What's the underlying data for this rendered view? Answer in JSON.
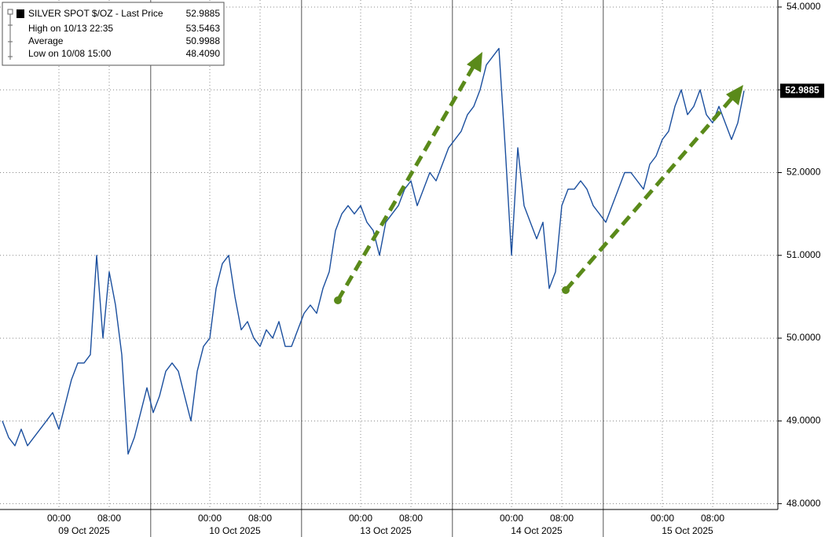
{
  "chart_data": {
    "type": "line",
    "legend": {
      "title": "SILVER SPOT $/OZ - Last Price",
      "last_price": 52.9885,
      "rows": [
        {
          "label": "High on 10/13 22:35",
          "value": 53.5463
        },
        {
          "label": "Average",
          "value": 50.9988
        },
        {
          "label": "Low on 10/08 15:00",
          "value": {
            "value": 48.409,
            "label": "48.4090"
          }
        }
      ]
    },
    "categories": [
      null,
      null,
      null,
      null,
      null,
      null,
      null,
      null,
      null,
      "00:00",
      null,
      null,
      null,
      null,
      null,
      null,
      null,
      "08:00",
      null,
      null,
      null,
      null,
      null,
      null,
      null,
      null,
      null,
      null,
      null,
      null,
      null,
      null,
      null,
      "00:00",
      null,
      null,
      null,
      null,
      null,
      null,
      null,
      "08:00",
      null,
      null,
      null,
      null,
      null,
      null,
      null,
      null,
      null,
      null,
      null,
      null,
      null,
      null,
      null,
      "00:00",
      null,
      null,
      null,
      null,
      null,
      null,
      null,
      "08:00",
      null,
      null,
      null,
      null,
      null,
      null,
      null,
      null,
      null,
      null,
      null,
      null,
      null,
      null,
      null,
      "00:00",
      null,
      null,
      null,
      null,
      null,
      null,
      null,
      "08:00",
      null,
      null,
      null,
      null,
      null,
      null,
      null,
      null,
      null,
      null,
      null,
      null,
      null,
      null,
      null,
      "00:00",
      null,
      null,
      null,
      null,
      null,
      null,
      null,
      "08:00",
      null,
      null,
      null,
      null,
      null
    ],
    "date_labels": [
      "09 Oct 2025",
      "10 Oct 2025",
      "13 Oct 2025",
      "14 Oct 2025",
      "15 Oct 2025"
    ],
    "series": [
      {
        "name": "SILVER SPOT $/OZ",
        "color": "#1b4f9e",
        "values": [
          49.0,
          48.8,
          48.7,
          48.9,
          48.7,
          48.8,
          48.9,
          49.0,
          49.1,
          48.9,
          49.2,
          49.5,
          49.7,
          49.7,
          49.8,
          51.0,
          50.0,
          50.8,
          50.4,
          49.8,
          48.6,
          48.8,
          49.1,
          49.4,
          49.1,
          49.3,
          49.6,
          49.7,
          49.6,
          49.3,
          49.0,
          49.6,
          49.9,
          50.0,
          50.6,
          50.9,
          51.0,
          50.5,
          50.1,
          50.2,
          50.0,
          49.9,
          50.1,
          50.0,
          50.2,
          49.9,
          49.9,
          50.1,
          50.3,
          50.4,
          50.3,
          50.6,
          50.8,
          51.3,
          51.5,
          51.6,
          51.5,
          51.6,
          51.4,
          51.3,
          51.0,
          51.4,
          51.5,
          51.6,
          51.8,
          51.9,
          51.6,
          51.8,
          52.0,
          51.9,
          52.1,
          52.3,
          52.4,
          52.5,
          52.7,
          52.8,
          53.0,
          53.3,
          53.4,
          53.5,
          52.3,
          51.0,
          52.3,
          51.6,
          51.4,
          51.2,
          51.4,
          50.6,
          50.8,
          51.6,
          51.8,
          51.8,
          51.9,
          51.8,
          51.6,
          51.5,
          51.4,
          51.6,
          51.8,
          52.0,
          52.0,
          51.9,
          51.8,
          52.1,
          52.2,
          52.4,
          52.5,
          52.8,
          53.0,
          52.7,
          52.8,
          53.0,
          52.7,
          52.6,
          52.8,
          52.6,
          52.4,
          52.6,
          52.9885
        ]
      }
    ],
    "ylim": [
      47.93,
      54.085
    ],
    "yticks": [
      {
        "value": 48,
        "label": "48.0000"
      },
      {
        "value": 49,
        "label": "49.0000"
      },
      {
        "value": 50,
        "label": "50.0000"
      },
      {
        "value": 51,
        "label": "51.0000"
      },
      {
        "value": 52,
        "label": "52.0000"
      },
      {
        "value": 53,
        "label": "53.0000"
      },
      {
        "value": 54,
        "label": "54.0000"
      }
    ],
    "grid": true
  }
}
